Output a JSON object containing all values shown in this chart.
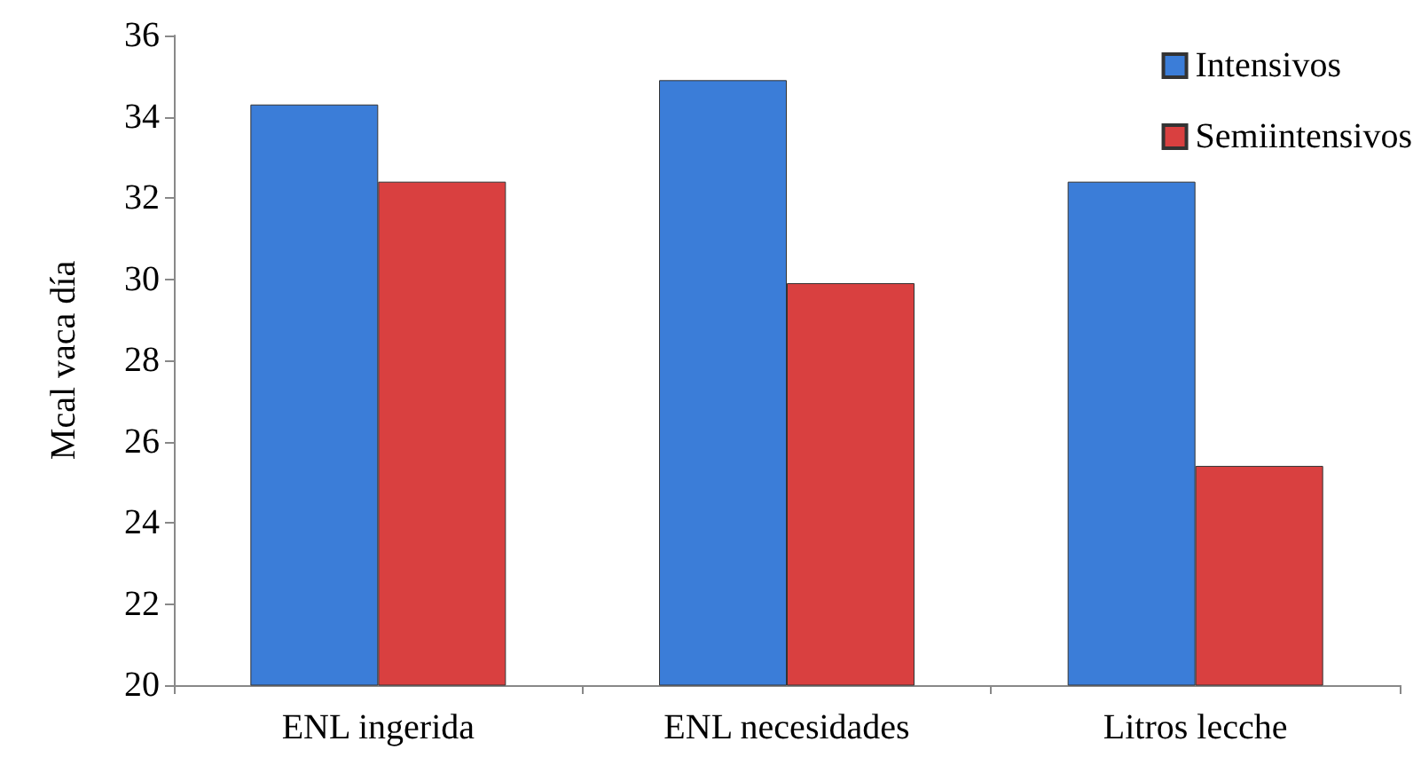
{
  "chart_data": {
    "type": "bar",
    "ylabel": "Mcal vaca día",
    "categories": [
      "ENL ingerida",
      "ENL necesidades",
      "Litros lecche"
    ],
    "series": [
      {
        "name": "Intensivos",
        "color": "#3b7dd8",
        "values": [
          34.3,
          34.9,
          32.4
        ]
      },
      {
        "name": "Semiintensivos",
        "color": "#d94040",
        "values": [
          32.4,
          29.9,
          25.4
        ]
      }
    ],
    "ylim": [
      20,
      36
    ],
    "yticks": [
      20,
      22,
      24,
      26,
      28,
      30,
      32,
      34,
      36
    ],
    "grid": false,
    "legend": "top right"
  }
}
